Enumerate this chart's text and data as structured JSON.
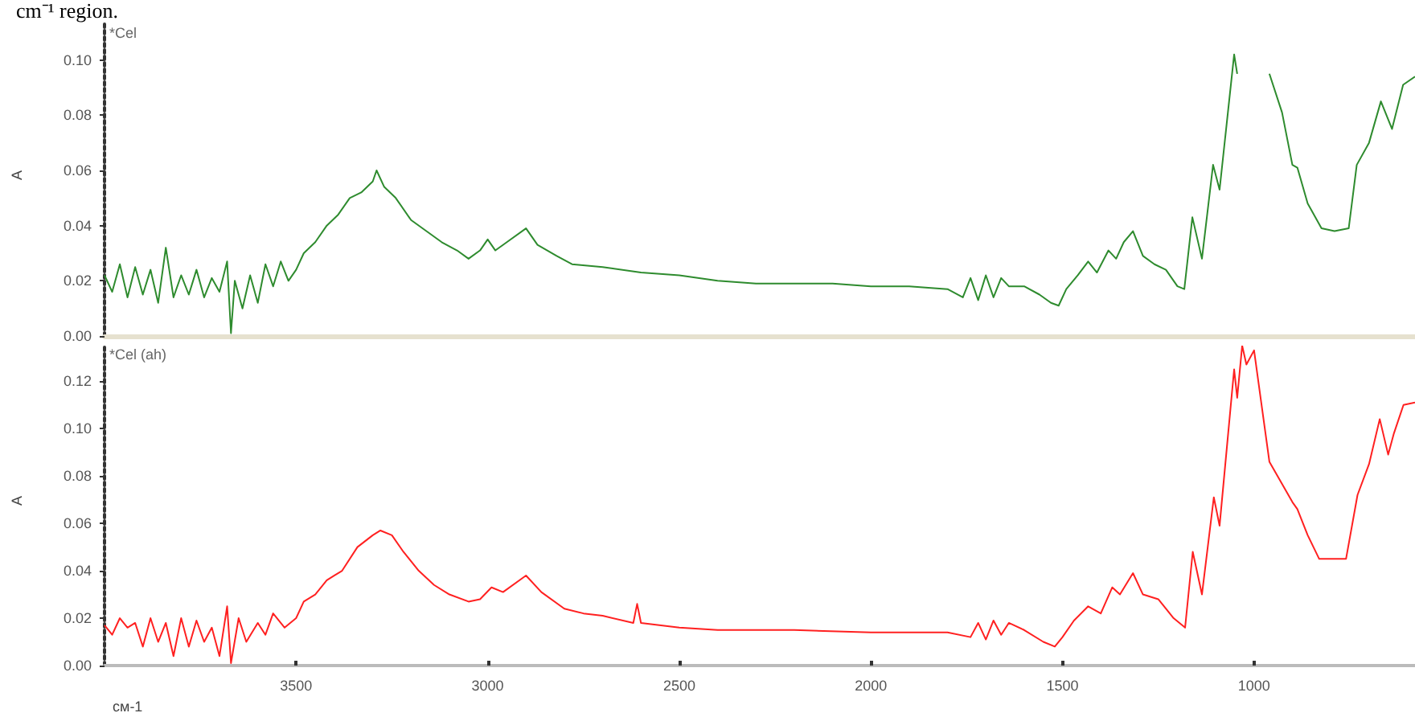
{
  "chart_data": [
    {
      "type": "line",
      "title": "*Cel",
      "ylabel": "A",
      "annotations": [
        "cm⁻¹ region."
      ],
      "color": "#2e8b2e",
      "tick_labels": "y",
      "xlim": [
        4000,
        580
      ],
      "ylim": [
        0,
        0.113
      ],
      "yticks": [
        {
          "value": 0,
          "label": "0.00"
        },
        {
          "value": 0.02,
          "label": "0.02"
        },
        {
          "value": 0.04,
          "label": "0.04"
        },
        {
          "value": 0.06,
          "label": "0.06"
        },
        {
          "value": 0.08,
          "label": "0.08"
        },
        {
          "value": 0.1,
          "label": "0.10"
        }
      ],
      "x": [
        4000,
        3980,
        3960,
        3940,
        3920,
        3900,
        3880,
        3860,
        3840,
        3820,
        3800,
        3780,
        3760,
        3740,
        3720,
        3700,
        3680,
        3670,
        3660,
        3640,
        3620,
        3600,
        3580,
        3560,
        3540,
        3520,
        3500,
        3480,
        3450,
        3420,
        3390,
        3360,
        3330,
        3300,
        3290,
        3270,
        3240,
        3200,
        3160,
        3120,
        3080,
        3050,
        3020,
        3000,
        2980,
        2950,
        2900,
        2870,
        2820,
        2780,
        2700,
        2600,
        2500,
        2400,
        2300,
        2200,
        2100,
        2000,
        1900,
        1800,
        1760,
        1740,
        1720,
        1700,
        1680,
        1660,
        1640,
        1600,
        1560,
        1530,
        1510,
        1490,
        1460,
        1433,
        1410,
        1380,
        1360,
        1340,
        1316,
        1290,
        1260,
        1230,
        1200,
        1182,
        1161,
        1136,
        1107,
        1090,
        1052,
        1044,
        1031,
        1010,
        990,
        960,
        927,
        900,
        887,
        860,
        824,
        790,
        753,
        732,
        700,
        669,
        640,
        611,
        580
      ],
      "values": [
        0.022,
        0.016,
        0.026,
        0.014,
        0.025,
        0.015,
        0.024,
        0.012,
        0.032,
        0.014,
        0.022,
        0.015,
        0.024,
        0.014,
        0.021,
        0.016,
        0.027,
        0.001,
        0.02,
        0.01,
        0.022,
        0.012,
        0.026,
        0.018,
        0.027,
        0.02,
        0.024,
        0.03,
        0.034,
        0.04,
        0.044,
        0.05,
        0.052,
        0.056,
        0.06,
        0.054,
        0.05,
        0.042,
        0.038,
        0.034,
        0.031,
        0.028,
        0.031,
        0.035,
        0.031,
        0.034,
        0.039,
        0.033,
        0.029,
        0.026,
        0.025,
        0.023,
        0.022,
        0.02,
        0.019,
        0.019,
        0.019,
        0.018,
        0.018,
        0.017,
        0.014,
        0.021,
        0.013,
        0.022,
        0.014,
        0.021,
        0.018,
        0.018,
        0.015,
        0.012,
        0.011,
        0.017,
        0.022,
        0.027,
        0.023,
        0.031,
        0.028,
        0.034,
        0.038,
        0.029,
        0.026,
        0.024,
        0.018,
        0.017,
        0.043,
        0.028,
        0.062,
        0.053,
        0.102,
        0.095,
        null,
        null,
        null,
        0.095,
        0.081,
        0.062,
        0.061,
        0.048,
        0.039,
        0.038,
        0.039,
        0.062,
        0.07,
        0.085,
        0.075,
        0.091,
        0.094
      ]
    },
    {
      "type": "line",
      "title": "*Cel (ah)",
      "ylabel": "A",
      "xlabel": "см-1",
      "color": "#ff2020",
      "xlim": [
        4000,
        580
      ],
      "ylim": [
        0,
        0.135
      ],
      "xticks": [
        3500,
        3000,
        2500,
        2000,
        1500,
        1000
      ],
      "yticks": [
        {
          "value": 0,
          "label": "0.00"
        },
        {
          "value": 0.02,
          "label": "0.02"
        },
        {
          "value": 0.04,
          "label": "0.04"
        },
        {
          "value": 0.06,
          "label": "0.06"
        },
        {
          "value": 0.08,
          "label": "0.08"
        },
        {
          "value": 0.1,
          "label": "0.10"
        },
        {
          "value": 0.12,
          "label": "0.12"
        }
      ],
      "x": [
        4000,
        3980,
        3960,
        3940,
        3920,
        3900,
        3880,
        3860,
        3840,
        3820,
        3800,
        3780,
        3760,
        3740,
        3720,
        3700,
        3680,
        3670,
        3650,
        3630,
        3600,
        3580,
        3560,
        3530,
        3500,
        3480,
        3450,
        3420,
        3400,
        3380,
        3340,
        3300,
        3280,
        3250,
        3220,
        3180,
        3140,
        3100,
        3050,
        3020,
        2990,
        2960,
        2900,
        2860,
        2800,
        2750,
        2700,
        2620,
        2610,
        2600,
        2500,
        2400,
        2200,
        2000,
        1800,
        1740,
        1720,
        1700,
        1680,
        1660,
        1640,
        1600,
        1550,
        1520,
        1500,
        1470,
        1433,
        1400,
        1370,
        1350,
        1316,
        1290,
        1250,
        1210,
        1180,
        1160,
        1136,
        1105,
        1090,
        1052,
        1044,
        1031,
        1020,
        1000,
        960,
        900,
        887,
        860,
        830,
        760,
        730,
        700,
        672,
        650,
        635,
        610,
        580
      ],
      "values": [
        0.017,
        0.013,
        0.02,
        0.016,
        0.018,
        0.008,
        0.02,
        0.01,
        0.018,
        0.004,
        0.02,
        0.008,
        0.019,
        0.01,
        0.016,
        0.004,
        0.025,
        0.001,
        0.02,
        0.01,
        0.018,
        0.013,
        0.022,
        0.016,
        0.02,
        0.027,
        0.03,
        0.036,
        0.038,
        0.04,
        0.05,
        0.055,
        0.057,
        0.055,
        0.048,
        0.04,
        0.034,
        0.03,
        0.027,
        0.028,
        0.033,
        0.031,
        0.038,
        0.031,
        0.024,
        0.022,
        0.021,
        0.018,
        0.026,
        0.018,
        0.016,
        0.015,
        0.015,
        0.014,
        0.014,
        0.012,
        0.018,
        0.011,
        0.019,
        0.013,
        0.018,
        0.015,
        0.01,
        0.008,
        0.012,
        0.019,
        0.025,
        0.022,
        0.033,
        0.03,
        0.039,
        0.03,
        0.028,
        0.02,
        0.016,
        0.048,
        0.03,
        0.071,
        0.059,
        0.125,
        0.113,
        0.135,
        0.127,
        0.133,
        0.086,
        0.069,
        0.066,
        0.055,
        0.045,
        0.045,
        0.072,
        0.085,
        0.104,
        0.089,
        0.098,
        0.11,
        0.111
      ]
    }
  ]
}
